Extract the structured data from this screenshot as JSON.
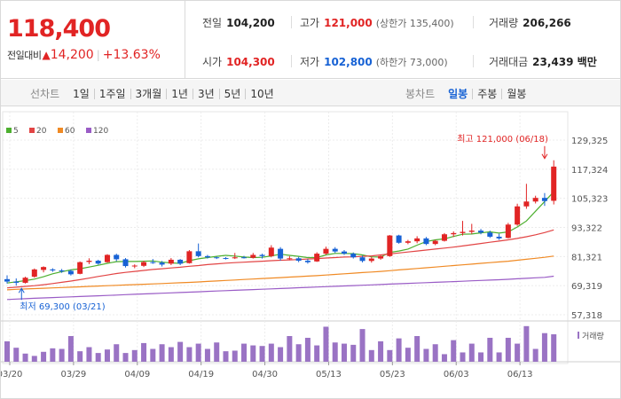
{
  "price": {
    "current": "118,400",
    "change_label": "전일대비",
    "change_arrow": "▲",
    "change_amount": "14,200",
    "change_percent": "+13.63%",
    "up_color": "#e12424",
    "down_color": "#1762d5"
  },
  "stats": {
    "prev_close": {
      "label": "전일",
      "value": "104,200"
    },
    "high": {
      "label": "고가",
      "value": "121,000",
      "sub": "(상한가 135,400)"
    },
    "volume": {
      "label": "거래량",
      "value": "206,266"
    },
    "open": {
      "label": "시가",
      "value": "104,300"
    },
    "low": {
      "label": "저가",
      "value": "102,800",
      "sub": "(하한가 73,000)"
    },
    "amount": {
      "label": "거래대금",
      "value": "23,439 백만"
    }
  },
  "line_tabs": {
    "label": "선차트",
    "items": [
      "1일",
      "1주일",
      "3개월",
      "1년",
      "3년",
      "5년",
      "10년"
    ]
  },
  "candle_tabs": {
    "label": "봉차트",
    "items": [
      "일봉",
      "주봉",
      "월봉"
    ],
    "active": "일봉"
  },
  "chart_data": {
    "type": "line",
    "subtype": "candlestick",
    "y_axis": {
      "ticks": [
        "129,325",
        "117,324",
        "105,323",
        "93,322",
        "81,321",
        "69,319",
        "57,318"
      ],
      "tick_values": [
        129325,
        117324,
        105323,
        93322,
        81321,
        69319,
        57318
      ],
      "range": [
        57318,
        129325
      ],
      "position": "right"
    },
    "x_axis": {
      "ticks": [
        "03/20",
        "03/29",
        "04/09",
        "04/19",
        "04/30",
        "05/13",
        "05/23",
        "06/03",
        "06/13"
      ],
      "tick_index": [
        0,
        7,
        14,
        21,
        28,
        35,
        42,
        49,
        56
      ]
    },
    "grid": true,
    "legend": {
      "placement": "top-left",
      "items": [
        {
          "name": "5",
          "color": "#4caf2e"
        },
        {
          "name": "20",
          "color": "#e24444"
        },
        {
          "name": "60",
          "color": "#f08a24"
        },
        {
          "name": "120",
          "color": "#9a5cc6"
        }
      ]
    },
    "annotations": {
      "high": {
        "text": "최고 121,000 (06/18)",
        "index": 59,
        "value": 121000
      },
      "low": {
        "text": "최저 69,300 (03/21)",
        "index": 1,
        "value": 69300
      }
    },
    "volume_label": "거래량",
    "candles": [
      {
        "o": 72000,
        "h": 73600,
        "l": 70200,
        "c": 71000
      },
      {
        "o": 71000,
        "h": 72300,
        "l": 69300,
        "c": 70500
      },
      {
        "o": 70500,
        "h": 73000,
        "l": 70200,
        "c": 72600
      },
      {
        "o": 73000,
        "h": 76400,
        "l": 72600,
        "c": 76000
      },
      {
        "o": 75800,
        "h": 77300,
        "l": 74800,
        "c": 77000
      },
      {
        "o": 76000,
        "h": 76500,
        "l": 75000,
        "c": 75600
      },
      {
        "o": 75600,
        "h": 76200,
        "l": 74600,
        "c": 75200
      },
      {
        "o": 75400,
        "h": 76000,
        "l": 73500,
        "c": 74000
      },
      {
        "o": 74200,
        "h": 79300,
        "l": 74000,
        "c": 79000
      },
      {
        "o": 79100,
        "h": 80600,
        "l": 78200,
        "c": 79600
      },
      {
        "o": 79600,
        "h": 80000,
        "l": 78000,
        "c": 78400
      },
      {
        "o": 79000,
        "h": 82300,
        "l": 78800,
        "c": 82000
      },
      {
        "o": 82000,
        "h": 82500,
        "l": 79400,
        "c": 80200
      },
      {
        "o": 80200,
        "h": 80700,
        "l": 76800,
        "c": 77400
      },
      {
        "o": 77400,
        "h": 78100,
        "l": 76500,
        "c": 77600
      },
      {
        "o": 77500,
        "h": 79600,
        "l": 77000,
        "c": 79000
      },
      {
        "o": 79000,
        "h": 80300,
        "l": 78300,
        "c": 78800
      },
      {
        "o": 78800,
        "h": 79500,
        "l": 77200,
        "c": 78000
      },
      {
        "o": 78400,
        "h": 80700,
        "l": 77800,
        "c": 80000
      },
      {
        "o": 80000,
        "h": 80300,
        "l": 77800,
        "c": 78400
      },
      {
        "o": 78600,
        "h": 84000,
        "l": 78400,
        "c": 83500
      },
      {
        "o": 83500,
        "h": 86700,
        "l": 81000,
        "c": 81500
      },
      {
        "o": 81500,
        "h": 82000,
        "l": 80500,
        "c": 81000
      },
      {
        "o": 81000,
        "h": 81300,
        "l": 80300,
        "c": 80700
      },
      {
        "o": 80700,
        "h": 81100,
        "l": 80100,
        "c": 80400
      },
      {
        "o": 80600,
        "h": 82800,
        "l": 80300,
        "c": 81000
      },
      {
        "o": 81000,
        "h": 81600,
        "l": 80500,
        "c": 80800
      },
      {
        "o": 80800,
        "h": 82800,
        "l": 80500,
        "c": 82000
      },
      {
        "o": 82000,
        "h": 82500,
        "l": 80500,
        "c": 81500
      },
      {
        "o": 81500,
        "h": 86000,
        "l": 81000,
        "c": 85000
      },
      {
        "o": 84500,
        "h": 85200,
        "l": 79600,
        "c": 80500
      },
      {
        "o": 80500,
        "h": 81500,
        "l": 79800,
        "c": 80600
      },
      {
        "o": 80600,
        "h": 81200,
        "l": 79000,
        "c": 79600
      },
      {
        "o": 79600,
        "h": 80300,
        "l": 78400,
        "c": 79000
      },
      {
        "o": 79300,
        "h": 83100,
        "l": 79100,
        "c": 82500
      },
      {
        "o": 82500,
        "h": 85400,
        "l": 82000,
        "c": 84500
      },
      {
        "o": 84500,
        "h": 85200,
        "l": 82800,
        "c": 83400
      },
      {
        "o": 83400,
        "h": 84000,
        "l": 82000,
        "c": 82500
      },
      {
        "o": 82500,
        "h": 83000,
        "l": 80500,
        "c": 81000
      },
      {
        "o": 81000,
        "h": 81700,
        "l": 78900,
        "c": 79500
      },
      {
        "o": 79500,
        "h": 81100,
        "l": 78800,
        "c": 80500
      },
      {
        "o": 80500,
        "h": 82000,
        "l": 80000,
        "c": 81500
      },
      {
        "o": 81500,
        "h": 90200,
        "l": 81200,
        "c": 90000
      },
      {
        "o": 90000,
        "h": 90300,
        "l": 86600,
        "c": 87000
      },
      {
        "o": 87000,
        "h": 88200,
        "l": 86400,
        "c": 87600
      },
      {
        "o": 87600,
        "h": 89700,
        "l": 86800,
        "c": 88800
      },
      {
        "o": 88800,
        "h": 89400,
        "l": 86000,
        "c": 86500
      },
      {
        "o": 86500,
        "h": 88200,
        "l": 86000,
        "c": 87800
      },
      {
        "o": 87800,
        "h": 91000,
        "l": 87500,
        "c": 90500
      },
      {
        "o": 90500,
        "h": 91700,
        "l": 89400,
        "c": 91000
      },
      {
        "o": 91000,
        "h": 96000,
        "l": 90000,
        "c": 91500
      },
      {
        "o": 91500,
        "h": 94800,
        "l": 90600,
        "c": 92000
      },
      {
        "o": 92000,
        "h": 92700,
        "l": 90500,
        "c": 91200
      },
      {
        "o": 91200,
        "h": 92000,
        "l": 89000,
        "c": 89500
      },
      {
        "o": 89500,
        "h": 90700,
        "l": 88200,
        "c": 88800
      },
      {
        "o": 89000,
        "h": 95200,
        "l": 88800,
        "c": 94500
      },
      {
        "o": 94500,
        "h": 103100,
        "l": 94000,
        "c": 102000
      },
      {
        "o": 102000,
        "h": 111300,
        "l": 101000,
        "c": 104000
      },
      {
        "o": 104000,
        "h": 106400,
        "l": 103200,
        "c": 105500
      },
      {
        "o": 105500,
        "h": 107500,
        "l": 102200,
        "c": 104200
      },
      {
        "o": 104300,
        "h": 121000,
        "l": 102800,
        "c": 118400
      }
    ],
    "ma": {
      "5": [
        70400,
        70900,
        71400,
        72000,
        73000,
        74200,
        75100,
        75800,
        76300,
        77000,
        77700,
        78500,
        79200,
        79300,
        79300,
        79400,
        79500,
        79000,
        78700,
        78500,
        79600,
        80400,
        80900,
        81400,
        81800,
        81500,
        81100,
        80900,
        81000,
        81600,
        82300,
        81800,
        81400,
        80900,
        80900,
        82000,
        82600,
        82600,
        82500,
        82000,
        81200,
        81100,
        83000,
        83600,
        84400,
        86000,
        87500,
        88200,
        88600,
        89600,
        90500,
        90600,
        91100,
        91500,
        91000,
        91500,
        93500,
        96000,
        100000,
        104000,
        108000
      ],
      "20": [
        68400,
        68700,
        69000,
        69300,
        69700,
        70200,
        70700,
        71200,
        71800,
        72400,
        73100,
        73700,
        74300,
        74800,
        75200,
        75600,
        76000,
        76300,
        76600,
        76900,
        77300,
        77600,
        78000,
        78300,
        78600,
        78800,
        79000,
        79200,
        79400,
        79600,
        79800,
        79900,
        80100,
        80300,
        80500,
        80700,
        80900,
        81100,
        81200,
        81400,
        81600,
        82000,
        82400,
        82800,
        83200,
        83600,
        84000,
        84400,
        84800,
        85200,
        85700,
        86200,
        86700,
        87200,
        87700,
        88200,
        88800,
        89500,
        90300,
        91200,
        92300
      ],
      "60": [
        67600,
        67800,
        67950,
        68100,
        68250,
        68400,
        68550,
        68700,
        68850,
        69000,
        69150,
        69300,
        69450,
        69600,
        69750,
        69900,
        70050,
        70200,
        70350,
        70500,
        70650,
        70850,
        71050,
        71250,
        71450,
        71650,
        71850,
        72050,
        72250,
        72450,
        72650,
        72850,
        73050,
        73250,
        73450,
        73700,
        73950,
        74200,
        74450,
        74700,
        74950,
        75200,
        75500,
        75800,
        76100,
        76400,
        76700,
        77000,
        77300,
        77600,
        77900,
        78200,
        78500,
        78800,
        79100,
        79400,
        79800,
        80200,
        80600,
        81000,
        81500
      ],
      "120": [
        63600,
        63800,
        63950,
        64100,
        64250,
        64400,
        64550,
        64700,
        64850,
        65000,
        65150,
        65300,
        65450,
        65600,
        65750,
        65900,
        66050,
        66200,
        66350,
        66500,
        66650,
        66800,
        66950,
        67100,
        67250,
        67400,
        67550,
        67700,
        67850,
        68000,
        68150,
        68300,
        68450,
        68600,
        68750,
        68900,
        69050,
        69200,
        69350,
        69500,
        69650,
        69800,
        69950,
        70100,
        70250,
        70400,
        70550,
        70700,
        70850,
        71000,
        71150,
        71300,
        71450,
        71600,
        71750,
        71950,
        72150,
        72350,
        72550,
        72750,
        73200
      ]
    },
    "volume": [
      35,
      24,
      14,
      10,
      17,
      23,
      22,
      44,
      18,
      25,
      15,
      21,
      30,
      15,
      20,
      32,
      22,
      30,
      25,
      34,
      25,
      31,
      22,
      33,
      18,
      19,
      31,
      28,
      27,
      31,
      25,
      44,
      30,
      41,
      28,
      60,
      33,
      31,
      29,
      56,
      20,
      35,
      20,
      40,
      24,
      44,
      22,
      30,
      13,
      37,
      16,
      31,
      16,
      41,
      16,
      41,
      31,
      61,
      22,
      49,
      47
    ]
  }
}
